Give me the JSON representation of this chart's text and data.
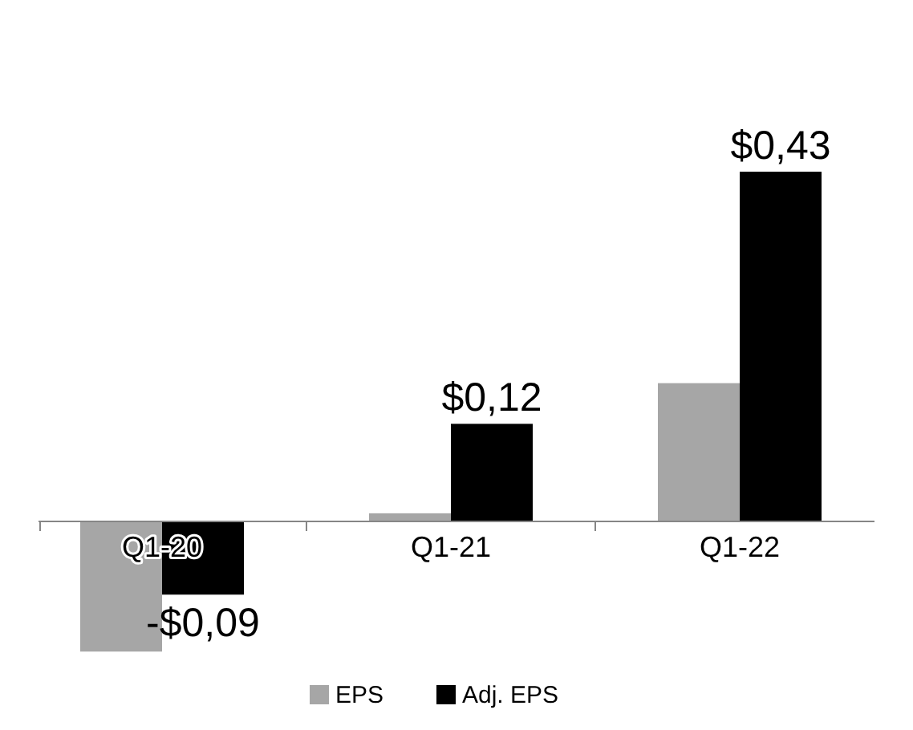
{
  "chart_data": {
    "type": "bar",
    "categories": [
      "Q1-20",
      "Q1-21",
      "Q1-22"
    ],
    "series": [
      {
        "name": "EPS",
        "color": "#a6a6a6",
        "values": [
          -0.16,
          0.01,
          0.17
        ]
      },
      {
        "name": "Adj. EPS",
        "color": "#000000",
        "values": [
          -0.09,
          0.12,
          0.43
        ],
        "value_labels": [
          "-$0,09",
          "$0,12",
          "$0,43"
        ]
      }
    ],
    "legend": "bottom",
    "tick_labels": "x"
  }
}
